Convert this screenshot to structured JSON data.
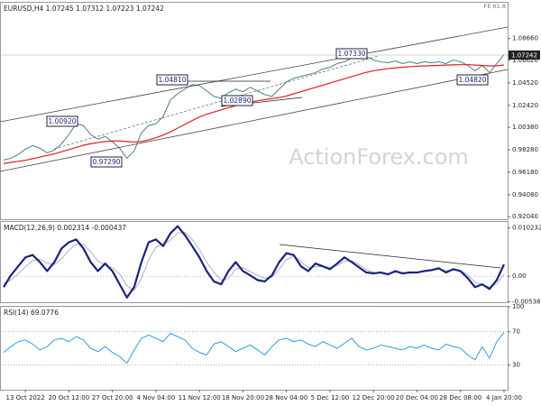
{
  "chart_data": [
    {
      "type": "line",
      "title": "EURUSD,H4  1.07245 1.07312 1.07223 1.07242",
      "fe_label": "FE 61.8",
      "watermark": "ActionForex.com",
      "last_price_label": "1.07242",
      "annotations": [
        "1.00920",
        "0.97290",
        "1.04810",
        "1.02890",
        "1.07330",
        "1.04820"
      ],
      "ylim": [
        0.918,
        1.12
      ],
      "yticks": [
        {
          "value": 1.0866,
          "label": "1.08660"
        },
        {
          "value": 1.0662,
          "label": "1.06620"
        },
        {
          "value": 1.0452,
          "label": "1.04520"
        },
        {
          "value": 1.0242,
          "label": "1.02420"
        },
        {
          "value": 1.0038,
          "label": "1.00380"
        },
        {
          "value": 0.9828,
          "label": "0.98280"
        },
        {
          "value": 0.9618,
          "label": "0.96180"
        },
        {
          "value": 0.9408,
          "label": "0.94080"
        },
        {
          "value": 0.9204,
          "label": "0.92040"
        }
      ],
      "grid": false,
      "series": [
        {
          "color": "#4f7d8c",
          "width": 1,
          "values": [
            0.9732,
            0.9749,
            0.9783,
            0.9834,
            0.9868,
            0.9842,
            0.98,
            0.9825,
            0.9885,
            0.997,
            1.0071,
            1.0054,
            0.997,
            0.9927,
            0.9953,
            0.9902,
            0.9842,
            0.9749,
            0.9817,
            0.9987,
            1.0054,
            1.0071,
            1.0139,
            1.0292,
            1.0352,
            1.0394,
            1.0437,
            1.0428,
            1.0377,
            1.0326,
            1.0309,
            1.036,
            1.0394,
            1.0369,
            1.0411,
            1.0377,
            1.0343,
            1.0326,
            1.0394,
            1.0462,
            1.0496,
            1.0513,
            1.053,
            1.0547,
            1.0581,
            1.0598,
            1.0632,
            1.0649,
            1.0683,
            1.0717,
            1.07,
            1.0666,
            1.0649,
            1.064,
            1.0657,
            1.0632,
            1.0649,
            1.0632,
            1.0649,
            1.064,
            1.0649,
            1.0632,
            1.0666,
            1.0649,
            1.0615,
            1.0564,
            1.0615,
            1.0547,
            1.0632,
            1.0717
          ]
        },
        {
          "color": "#e02020",
          "width": 1.2,
          "values": [
            0.97,
            0.971,
            0.972,
            0.973,
            0.9745,
            0.976,
            0.9775,
            0.979,
            0.981,
            0.983,
            0.985,
            0.987,
            0.9885,
            0.9895,
            0.9905,
            0.991,
            0.991,
            0.9905,
            0.99,
            0.9905,
            0.992,
            0.994,
            0.9965,
            0.9995,
            1.003,
            1.0065,
            1.01,
            1.0135,
            1.016,
            1.018,
            1.02,
            1.022,
            1.024,
            1.0255,
            1.027,
            1.0285,
            1.0295,
            1.0305,
            1.0315,
            1.033,
            1.035,
            1.037,
            1.039,
            1.041,
            1.043,
            1.045,
            1.047,
            1.049,
            1.051,
            1.053,
            1.055,
            1.0565,
            1.0575,
            1.0585,
            1.0592,
            1.0598,
            1.0603,
            1.0607,
            1.061,
            1.0613,
            1.0615,
            1.0618,
            1.062,
            1.0622,
            1.0622,
            1.0618,
            1.0615,
            1.061,
            1.0612,
            1.0618
          ]
        }
      ]
    },
    {
      "type": "line",
      "title": "MACD(12,26,9) 0.002314 -0.000437",
      "ylim": [
        -0.0055,
        0.0115
      ],
      "yticks": [
        0.010232,
        {
          "value": 0,
          "label": "0.00"
        },
        -0.005389
      ],
      "grid": false,
      "series": [
        {
          "color": "#b0b0c8",
          "width": 1,
          "values": [
            -0.0015,
            -0.0008,
            0.0005,
            0.002,
            0.0033,
            0.0036,
            0.0028,
            0.0025,
            0.0037,
            0.0055,
            0.0068,
            0.0068,
            0.0052,
            0.0032,
            0.0024,
            0.0018,
            0.0005,
            -0.002,
            -0.003,
            -0.0005,
            0.0035,
            0.0062,
            0.0068,
            0.0076,
            0.0092,
            0.0093,
            0.0078,
            0.0056,
            0.003,
            0.0008,
            -0.0008,
            -0.0005,
            0.0015,
            0.0018,
            0.001,
            0.0002,
            -0.0004,
            -0.0002,
            0.0015,
            0.0035,
            0.0043,
            0.0032,
            0.0018,
            0.002,
            0.0021,
            0.0019,
            0.0022,
            0.0032,
            0.0033,
            0.0025,
            0.0014,
            0.0008,
            0.0008,
            0.0006,
            0.0008,
            0.0008,
            0.0008,
            0.0008,
            0.001,
            0.0012,
            0.0015,
            0.0012,
            0.0013,
            0.0012,
            0.0003,
            -0.0013,
            -0.0017,
            -0.0023,
            -0.0016,
            0.0004
          ]
        },
        {
          "color": "#1a237e",
          "width": 2.2,
          "values": [
            -0.0023,
            0.0002,
            0.0021,
            0.004,
            0.0045,
            0.003,
            0.0011,
            0.003,
            0.0059,
            0.0072,
            0.0078,
            0.0059,
            0.003,
            0.0011,
            0.0027,
            0.0011,
            -0.0017,
            -0.0045,
            -0.0023,
            0.003,
            0.0072,
            0.0078,
            0.0064,
            0.0091,
            0.0106,
            0.0087,
            0.0064,
            0.004,
            0.0011,
            -0.0011,
            -0.0017,
            0.0011,
            0.003,
            0.0011,
            0.0002,
            -0.0008,
            -0.0011,
            0.0002,
            0.003,
            0.0049,
            0.0045,
            0.0021,
            0.0011,
            0.0027,
            0.0021,
            0.0015,
            0.0027,
            0.004,
            0.003,
            0.0019,
            0.0008,
            0.0006,
            0.0008,
            0.0004,
            0.0011,
            0.0006,
            0.0008,
            0.0008,
            0.0011,
            0.0013,
            0.0017,
            0.0008,
            0.0015,
            0.0011,
            -0.0004,
            -0.0023,
            -0.0017,
            -0.0027,
            -0.0008,
            0.0025
          ]
        }
      ]
    },
    {
      "type": "line",
      "title": "RSI(14) 69.0776",
      "ylim": [
        0,
        100
      ],
      "yticks": [
        100,
        70,
        30
      ],
      "grid": true,
      "categories": [
        null,
        null,
        null,
        "13 Oct 2022",
        null,
        null,
        null,
        null,
        null,
        "20 Oct 12:00",
        null,
        null,
        null,
        null,
        null,
        "27 Oct 20:00",
        null,
        null,
        null,
        null,
        null,
        "4 Nov 04:00",
        null,
        null,
        null,
        null,
        null,
        "11 Nov 12:00",
        null,
        null,
        null,
        null,
        null,
        "18 Nov 20:00",
        null,
        null,
        null,
        null,
        null,
        "28 Nov 04:00",
        null,
        null,
        null,
        null,
        null,
        "5 Dec 12:00",
        null,
        null,
        null,
        null,
        null,
        "12 Dec 20:00",
        null,
        null,
        null,
        null,
        null,
        "20 Dec 04:00",
        null,
        null,
        null,
        null,
        null,
        "28 Dec 08:00",
        null,
        null,
        null,
        null,
        null,
        "4 Jan 20:00"
      ],
      "series": [
        {
          "color": "#2a9fe0",
          "width": 1,
          "values": [
            45,
            52,
            58,
            60,
            55,
            48,
            52,
            60,
            62,
            58,
            64,
            60,
            50,
            46,
            52,
            45,
            40,
            32,
            48,
            62,
            66,
            62,
            58,
            68,
            64,
            60,
            50,
            45,
            42,
            55,
            58,
            52,
            46,
            50,
            54,
            48,
            42,
            52,
            60,
            62,
            58,
            60,
            55,
            52,
            58,
            54,
            50,
            56,
            62,
            52,
            48,
            50,
            54,
            52,
            50,
            48,
            52,
            50,
            54,
            50,
            48,
            55,
            52,
            50,
            42,
            36,
            52,
            38,
            58,
            69.08
          ]
        }
      ]
    }
  ]
}
